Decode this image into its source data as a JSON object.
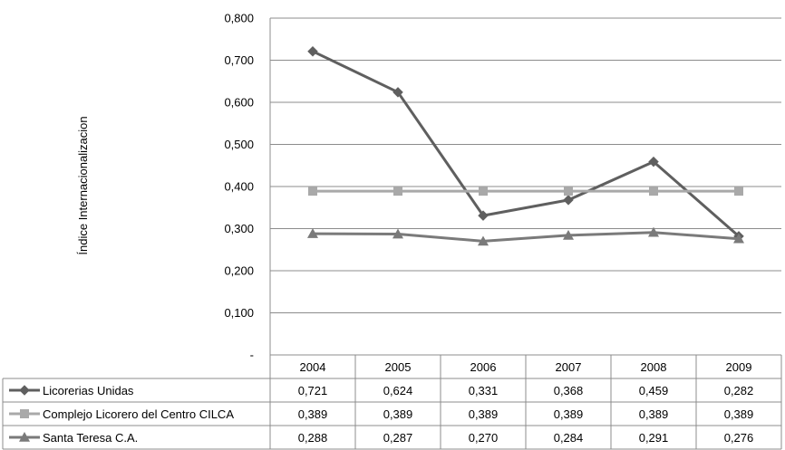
{
  "chart_data": {
    "type": "line",
    "title": "",
    "xlabel": "",
    "ylabel": "Índice Internacionalizacion",
    "ylim": [
      0,
      0.8
    ],
    "y_ticks": [
      "-",
      "0,100",
      "0,200",
      "0,300",
      "0,400",
      "0,500",
      "0,600",
      "0,700",
      "0,800"
    ],
    "categories": [
      "2004",
      "2005",
      "2006",
      "2007",
      "2008",
      "2009"
    ],
    "grid": true,
    "legend": "data-table",
    "series": [
      {
        "name": "Licorerias Unidas",
        "values": [
          0.721,
          0.624,
          0.331,
          0.368,
          0.459,
          0.282
        ],
        "labels": [
          "0,721",
          "0,624",
          "0,331",
          "0,368",
          "0,459",
          "0,282"
        ],
        "marker": "diamond",
        "color": "#5f5f5f"
      },
      {
        "name": "Complejo Licorero del Centro CILCA",
        "values": [
          0.389,
          0.389,
          0.389,
          0.389,
          0.389,
          0.389
        ],
        "labels": [
          "0,389",
          "0,389",
          "0,389",
          "0,389",
          "0,389",
          "0,389"
        ],
        "marker": "square",
        "color": "#a9a9a9"
      },
      {
        "name": "Santa Teresa C.A.",
        "values": [
          0.288,
          0.287,
          0.27,
          0.284,
          0.291,
          0.276
        ],
        "labels": [
          "0,288",
          "0,287",
          "0,270",
          "0,284",
          "0,291",
          "0,276"
        ],
        "marker": "triangle",
        "color": "#7a7a7a"
      }
    ]
  }
}
